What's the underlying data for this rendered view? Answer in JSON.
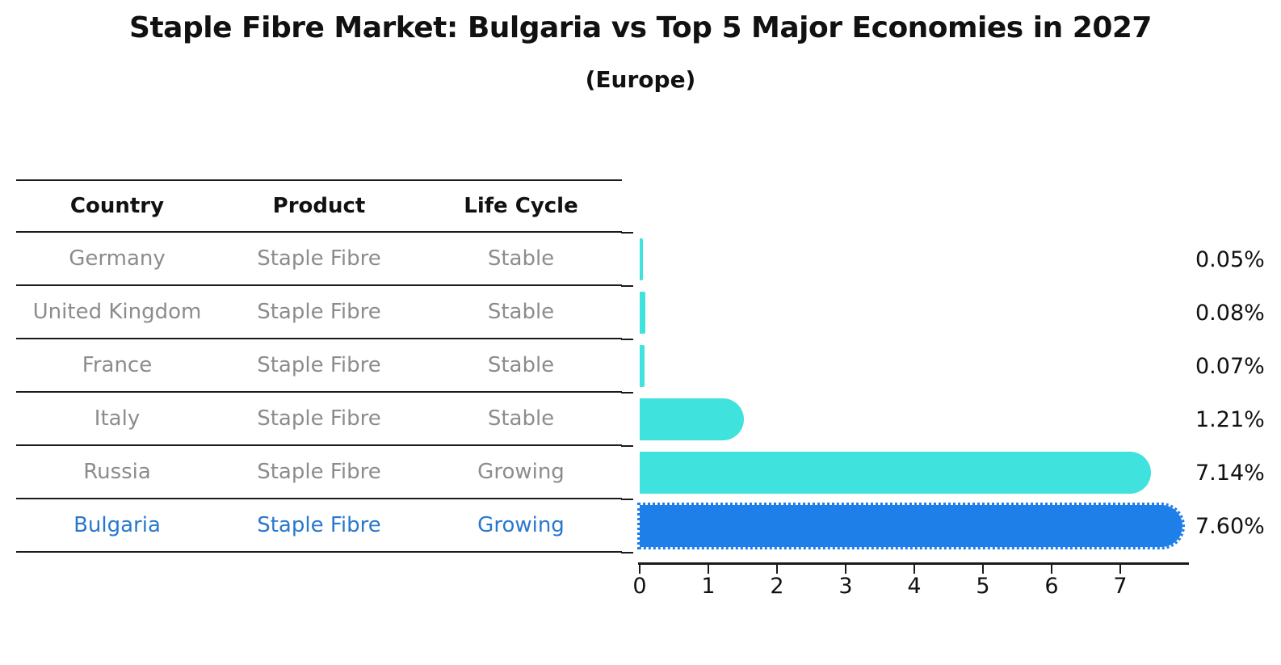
{
  "header": {
    "title": "Staple Fibre Market: Bulgaria vs Top 5 Major Economies in 2027",
    "subtitle": "(Europe)"
  },
  "table": {
    "headers": [
      "Country",
      "Product",
      "Life Cycle"
    ],
    "rows": [
      {
        "country": "Germany",
        "product": "Staple Fibre",
        "life_cycle": "Stable",
        "highlight": false
      },
      {
        "country": "United Kingdom",
        "product": "Staple Fibre",
        "life_cycle": "Stable",
        "highlight": false
      },
      {
        "country": "France",
        "product": "Staple Fibre",
        "life_cycle": "Stable",
        "highlight": false
      },
      {
        "country": "Italy",
        "product": "Staple Fibre",
        "life_cycle": "Stable",
        "highlight": false
      },
      {
        "country": "Russia",
        "product": "Staple Fibre",
        "life_cycle": "Growing",
        "highlight": false
      },
      {
        "country": "Bulgaria",
        "product": "Staple Fibre",
        "life_cycle": "Growing",
        "highlight": true
      }
    ]
  },
  "chart_data": {
    "type": "bar",
    "orientation": "horizontal",
    "title": "Staple Fibre Market: Bulgaria vs Top 5 Major Economies in 2027",
    "subtitle": "(Europe)",
    "categories": [
      "Germany",
      "United Kingdom",
      "France",
      "Italy",
      "Russia",
      "Bulgaria"
    ],
    "values": [
      0.05,
      0.08,
      0.07,
      1.21,
      7.14,
      7.6
    ],
    "value_labels": [
      "0.05%",
      "0.08%",
      "0.07%",
      "1.21%",
      "7.14%",
      "7.60%"
    ],
    "xlabel": "",
    "ylabel": "",
    "xlim": [
      0,
      8
    ],
    "xticks": [
      "0",
      "1",
      "2",
      "3",
      "4",
      "5",
      "6",
      "7"
    ],
    "grid": false,
    "legend": null,
    "highlight_index": 5,
    "bar_colors": [
      "#40e2de",
      "#40e2de",
      "#40e2de",
      "#40e2de",
      "#40e2de",
      "#1e7fe8"
    ]
  },
  "colors": {
    "bar_cyan": "#40e2de",
    "bar_blue": "#1e7fe8",
    "highlight_text": "#2878cd",
    "muted_text": "#8c8c8c",
    "line": "#1a1a1a"
  }
}
